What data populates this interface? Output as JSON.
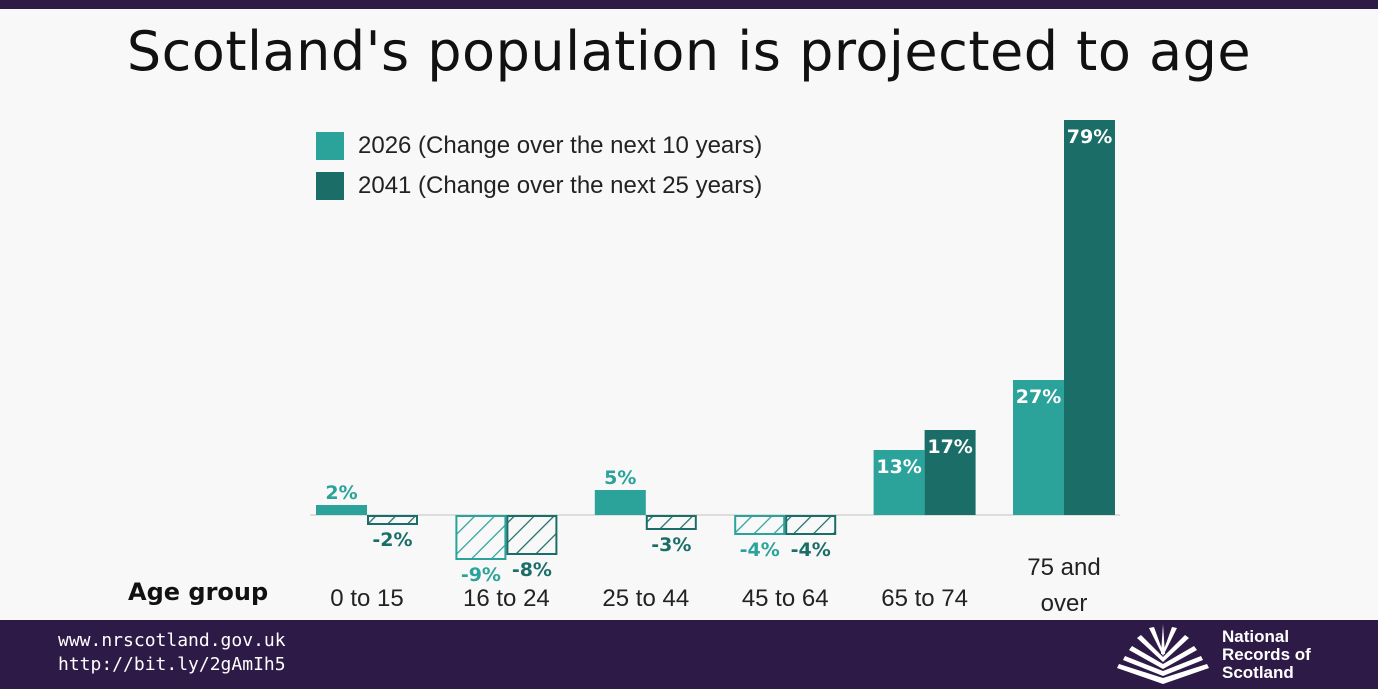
{
  "title": "Scotland's population is projected to age",
  "legend": [
    {
      "label": "2026 (Change over the next 10 years)",
      "color": "#2ba39b"
    },
    {
      "label": "2041 (Change over the next 25 years)",
      "color": "#1b6e68"
    }
  ],
  "axis_label": "Age group",
  "footer": {
    "url1": "www.nrscotland.gov.uk",
    "url2": "http://bit.ly/2gAmIh5",
    "logo_line1": "National",
    "logo_line2": "Records of",
    "logo_line3": "Scotland"
  },
  "chart_data": {
    "type": "bar",
    "title": "Scotland's population is projected to age",
    "xlabel": "Age group",
    "ylabel": "",
    "categories": [
      "0 to 15",
      "16 to 24",
      "25 to 44",
      "45 to 64",
      "65 to 74",
      "75 and over"
    ],
    "series": [
      {
        "name": "2026 (Change over the next 10 years)",
        "values": [
          2,
          -9,
          5,
          -4,
          13,
          27
        ],
        "labels": [
          "2%",
          "-9%",
          "5%",
          "-4%",
          "13%",
          "27%"
        ],
        "color": "#2ba39b"
      },
      {
        "name": "2041 (Change over the next 25 years)",
        "values": [
          -2,
          -8,
          -3,
          -4,
          17,
          79
        ],
        "labels": [
          "-2%",
          "-8%",
          "-3%",
          "-4%",
          "17%",
          "79%"
        ],
        "color": "#1b6e68"
      }
    ],
    "negative_style": "hatched outline",
    "grid": false,
    "legend_position": "top-left"
  }
}
